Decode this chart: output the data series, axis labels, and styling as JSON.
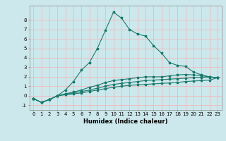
{
  "title": "",
  "xlabel": "Humidex (Indice chaleur)",
  "background_color": "#cde8ec",
  "grid_color": "#f0b8b8",
  "line_color": "#1a7a6e",
  "x_values": [
    0,
    1,
    2,
    3,
    4,
    5,
    6,
    7,
    8,
    9,
    10,
    11,
    12,
    13,
    14,
    15,
    16,
    17,
    18,
    19,
    20,
    21,
    22,
    23
  ],
  "line1_y": [
    -0.3,
    -0.7,
    -0.4,
    0.0,
    0.6,
    1.5,
    2.7,
    3.5,
    5.0,
    6.9,
    8.8,
    8.2,
    7.0,
    6.5,
    6.3,
    5.3,
    4.5,
    3.5,
    3.2,
    3.1,
    2.5,
    2.2,
    2.0,
    1.9
  ],
  "line2_y": [
    -0.3,
    -0.7,
    -0.4,
    0.0,
    0.2,
    0.4,
    0.6,
    0.9,
    1.1,
    1.4,
    1.6,
    1.7,
    1.8,
    1.9,
    2.0,
    2.0,
    2.0,
    2.1,
    2.2,
    2.25,
    2.2,
    2.1,
    2.0,
    1.9
  ],
  "line3_y": [
    -0.3,
    -0.7,
    -0.4,
    0.0,
    0.15,
    0.3,
    0.45,
    0.6,
    0.8,
    1.0,
    1.2,
    1.3,
    1.4,
    1.5,
    1.6,
    1.65,
    1.7,
    1.75,
    1.8,
    1.85,
    1.9,
    1.95,
    1.95,
    1.9
  ],
  "line4_y": [
    -0.3,
    -0.7,
    -0.4,
    0.0,
    0.1,
    0.2,
    0.3,
    0.45,
    0.6,
    0.75,
    0.9,
    1.0,
    1.1,
    1.15,
    1.2,
    1.25,
    1.3,
    1.35,
    1.4,
    1.5,
    1.55,
    1.6,
    1.65,
    1.9
  ],
  "xlim": [
    -0.5,
    23.5
  ],
  "ylim": [
    -1.5,
    9.5
  ],
  "yticks": [
    -1,
    0,
    1,
    2,
    3,
    4,
    5,
    6,
    7,
    8
  ],
  "xticks": [
    0,
    1,
    2,
    3,
    4,
    5,
    6,
    7,
    8,
    9,
    10,
    11,
    12,
    13,
    14,
    15,
    16,
    17,
    18,
    19,
    20,
    21,
    22,
    23
  ],
  "tick_fontsize": 5.0,
  "xlabel_fontsize": 6.0,
  "marker_size": 2.5,
  "line_width": 0.8
}
